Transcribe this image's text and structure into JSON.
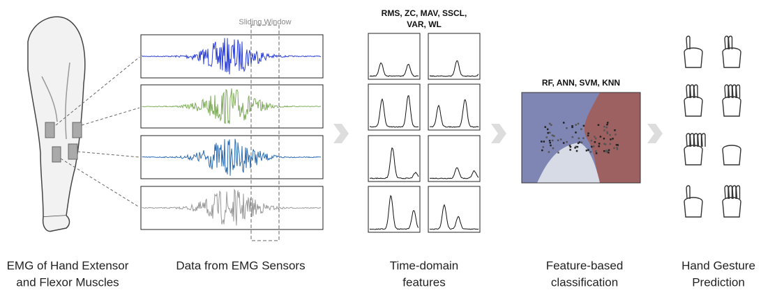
{
  "sliding_window": "Sliding Window",
  "features_list": [
    "RMS, ZC, MAV, SSCL,",
    "VAR, WL"
  ],
  "classifiers": "RF, ANN, SVM, KNN",
  "captions": [
    [
      "EMG of Hand Extensor",
      "and Flexor Muscles"
    ],
    [
      "Data from EMG Sensors"
    ],
    [
      "Time-domain",
      "features"
    ],
    [
      "Feature-based",
      "classification"
    ],
    [
      "Hand Gesture",
      "Prediction"
    ]
  ]
}
